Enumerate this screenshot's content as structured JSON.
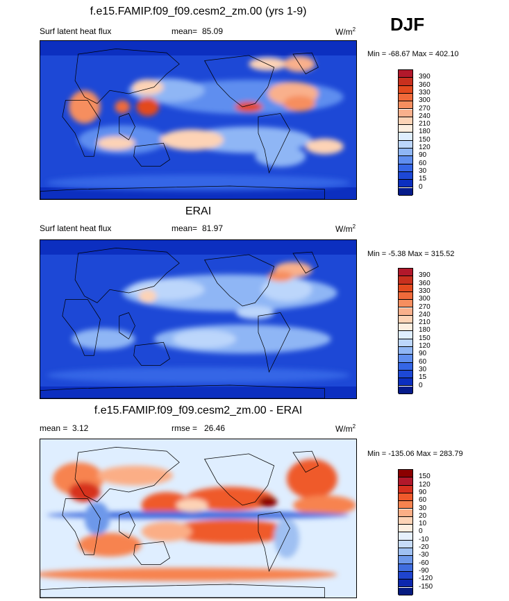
{
  "season": "DJF",
  "units_base": "W/m",
  "units_exp": "2",
  "panels": [
    {
      "title": "f.e15.FAMIP.f09_f09.cesm2_zm.00 (yrs 1-9)",
      "left_label": "Surf latent heat flux",
      "stat_label": "mean=",
      "stat_value": "85.09",
      "minmax": "Min = -68.67 Max = 402.10",
      "levels": [
        "390",
        "360",
        "330",
        "300",
        "270",
        "240",
        "210",
        "180",
        "150",
        "120",
        "90",
        "60",
        "30",
        "15",
        "0"
      ],
      "colors": [
        "#b2182b",
        "#c8301e",
        "#e34a1f",
        "#f06a3a",
        "#f68e5f",
        "#f9b08c",
        "#fdd3b6",
        "#fdeee0",
        "#dfeeff",
        "#bcd6fb",
        "#8fb6f5",
        "#5f8eef",
        "#3566e6",
        "#1d48d6",
        "#0c2fc0",
        "#061b8a"
      ],
      "base": "#1d48d6",
      "blobs": [
        {
          "cx": 330,
          "cy": 85,
          "rx": 150,
          "ry": 26,
          "c": "#5f8eef"
        },
        {
          "cx": 200,
          "cy": 75,
          "rx": 60,
          "ry": 18,
          "c": "#8fb6f5"
        },
        {
          "cx": 400,
          "cy": 80,
          "rx": 40,
          "ry": 18,
          "c": "#f9b08c"
        },
        {
          "cx": 170,
          "cy": 70,
          "rx": 25,
          "ry": 12,
          "c": "#fdd3b6"
        },
        {
          "cx": 130,
          "cy": 150,
          "rx": 70,
          "ry": 22,
          "c": "#5f8eef"
        },
        {
          "cx": 330,
          "cy": 150,
          "rx": 100,
          "ry": 20,
          "c": "#8fb6f5"
        },
        {
          "cx": 240,
          "cy": 150,
          "rx": 50,
          "ry": 16,
          "c": "#fdd3b6"
        },
        {
          "cx": 380,
          "cy": 175,
          "rx": 40,
          "ry": 16,
          "c": "#8fb6f5"
        },
        {
          "cx": 450,
          "cy": 160,
          "rx": 30,
          "ry": 12,
          "c": "#fdd3b6"
        },
        {
          "cx": 120,
          "cy": 155,
          "rx": 30,
          "ry": 10,
          "c": "#fdd3b6"
        },
        {
          "cx": 250,
          "cy": 215,
          "rx": 240,
          "ry": 12,
          "c": "#3566e6"
        },
        {
          "cx": 70,
          "cy": 100,
          "rx": 25,
          "ry": 25,
          "c": "#f68e5f"
        },
        {
          "cx": 170,
          "cy": 100,
          "rx": 18,
          "ry": 14,
          "c": "#e34a1f"
        },
        {
          "cx": 130,
          "cy": 100,
          "rx": 12,
          "ry": 10,
          "c": "#f06a3a"
        },
        {
          "cx": 330,
          "cy": 100,
          "rx": 22,
          "ry": 8,
          "c": "#e34a1f"
        },
        {
          "cx": 410,
          "cy": 95,
          "rx": 25,
          "ry": 12,
          "c": "#f68e5f"
        },
        {
          "cx": 360,
          "cy": 35,
          "rx": 30,
          "ry": 10,
          "c": "#fdd3b6"
        },
        {
          "cx": 410,
          "cy": 35,
          "rx": 25,
          "ry": 12,
          "c": "#f9b08c"
        }
      ]
    },
    {
      "title": "ERAI",
      "left_label": "Surf latent heat flux",
      "stat_label": "mean=",
      "stat_value": "81.97",
      "minmax": "Min =  -5.38 Max = 315.52",
      "levels": [
        "390",
        "360",
        "330",
        "300",
        "270",
        "240",
        "210",
        "180",
        "150",
        "120",
        "90",
        "60",
        "30",
        "15",
        "0"
      ],
      "colors": [
        "#b2182b",
        "#c8301e",
        "#e34a1f",
        "#f06a3a",
        "#f68e5f",
        "#f9b08c",
        "#fdd3b6",
        "#fdeee0",
        "#dfeeff",
        "#bcd6fb",
        "#8fb6f5",
        "#5f8eef",
        "#3566e6",
        "#1d48d6",
        "#0c2fc0",
        "#061b8a"
      ],
      "base": "#1d48d6",
      "blobs": [
        {
          "cx": 300,
          "cy": 80,
          "rx": 170,
          "ry": 28,
          "c": "#8fb6f5"
        },
        {
          "cx": 200,
          "cy": 75,
          "rx": 60,
          "ry": 16,
          "c": "#bcd6fb"
        },
        {
          "cx": 390,
          "cy": 75,
          "rx": 40,
          "ry": 18,
          "c": "#bcd6fb"
        },
        {
          "cx": 320,
          "cy": 150,
          "rx": 140,
          "ry": 22,
          "c": "#8fb6f5"
        },
        {
          "cx": 260,
          "cy": 150,
          "rx": 50,
          "ry": 14,
          "c": "#bcd6fb"
        },
        {
          "cx": 100,
          "cy": 150,
          "rx": 50,
          "ry": 16,
          "c": "#8fb6f5"
        },
        {
          "cx": 250,
          "cy": 205,
          "rx": 240,
          "ry": 12,
          "c": "#3566e6"
        },
        {
          "cx": 170,
          "cy": 85,
          "rx": 14,
          "ry": 10,
          "c": "#fdd3b6"
        },
        {
          "cx": 400,
          "cy": 45,
          "rx": 30,
          "ry": 12,
          "c": "#f9b08c"
        },
        {
          "cx": 380,
          "cy": 55,
          "rx": 20,
          "ry": 8,
          "c": "#f68e5f"
        },
        {
          "cx": 340,
          "cy": 110,
          "rx": 30,
          "ry": 10,
          "c": "#bcd6fb"
        }
      ]
    },
    {
      "title": "f.e15.FAMIP.f09_f09.cesm2_zm.00 - ERAI",
      "left_label": "mean =",
      "left_value": "3.12",
      "stat_label": "rmse =",
      "stat_value": "26.46",
      "minmax": "Min = -135.06 Max = 283.79",
      "levels": [
        "150",
        "120",
        "90",
        "60",
        "30",
        "20",
        "10",
        "0",
        "-10",
        "-20",
        "-30",
        "-60",
        "-90",
        "-120",
        "-150"
      ],
      "colors": [
        "#8b0000",
        "#b2182b",
        "#d7301f",
        "#ef5a2c",
        "#f7834f",
        "#fbae86",
        "#fdd3b6",
        "#fdeee0",
        "#e6f0fd",
        "#c6dbf8",
        "#9fc0f2",
        "#6d98ea",
        "#3f6ddf",
        "#1f44cf",
        "#0c27ae",
        "#061b80"
      ],
      "base": "#dfeeff",
      "blobs": [
        {
          "cx": 60,
          "cy": 60,
          "rx": 40,
          "ry": 25,
          "c": "#f7834f"
        },
        {
          "cx": 150,
          "cy": 55,
          "rx": 60,
          "ry": 15,
          "c": "#fbae86"
        },
        {
          "cx": 200,
          "cy": 100,
          "rx": 40,
          "ry": 20,
          "c": "#ef5a2c"
        },
        {
          "cx": 300,
          "cy": 90,
          "rx": 70,
          "ry": 18,
          "c": "#ef5a2c"
        },
        {
          "cx": 70,
          "cy": 80,
          "rx": 25,
          "ry": 15,
          "c": "#d7301f"
        },
        {
          "cx": 430,
          "cy": 60,
          "rx": 40,
          "ry": 30,
          "c": "#ef5a2c"
        },
        {
          "cx": 450,
          "cy": 100,
          "rx": 50,
          "ry": 15,
          "c": "#f7834f"
        },
        {
          "cx": 250,
          "cy": 115,
          "rx": 240,
          "ry": 6,
          "c": "#3f6ddf"
        },
        {
          "cx": 300,
          "cy": 140,
          "rx": 100,
          "ry": 18,
          "c": "#ef5a2c"
        },
        {
          "cx": 110,
          "cy": 160,
          "rx": 50,
          "ry": 18,
          "c": "#f7834f"
        },
        {
          "cx": 200,
          "cy": 140,
          "rx": 40,
          "ry": 15,
          "c": "#fbae86"
        },
        {
          "cx": 230,
          "cy": 205,
          "rx": 240,
          "ry": 10,
          "c": "#f7834f"
        },
        {
          "cx": 90,
          "cy": 120,
          "rx": 20,
          "ry": 25,
          "c": "#6d98ea"
        },
        {
          "cx": 390,
          "cy": 150,
          "rx": 20,
          "ry": 30,
          "c": "#9fc0f2"
        },
        {
          "cx": 240,
          "cy": 100,
          "rx": 25,
          "ry": 10,
          "c": "#fdd3b6"
        },
        {
          "cx": 360,
          "cy": 95,
          "rx": 15,
          "ry": 8,
          "c": "#8b0000"
        }
      ]
    }
  ],
  "continents": [
    "M 60 20 L 120 12 L 200 18 L 220 35 L 200 50 L 180 70 L 140 80 L 110 75 L 90 95 L 70 85 L 55 60 Z",
    "M 40 90 L 75 90 L 95 120 L 85 175 L 70 175 L 55 140 L 35 115 Z",
    "M 125 115 L 140 110 L 150 130 L 140 150 L 125 140 Z",
    "M 150 160 L 195 155 L 205 180 L 190 190 L 160 190 L 148 175 Z",
    "M 260 30 L 330 22 L 370 40 L 360 70 L 340 95 L 320 100 L 300 85 L 280 65 Z",
    "M 345 115 L 380 110 L 395 135 L 380 165 L 362 200 L 355 165 L 345 140 Z",
    "M 400 20 L 430 18 L 440 40 L 420 50 Z",
    "M 60 225 L 300 220 L 450 225 L 450 240 L 0 240 L 0 228 Z"
  ]
}
